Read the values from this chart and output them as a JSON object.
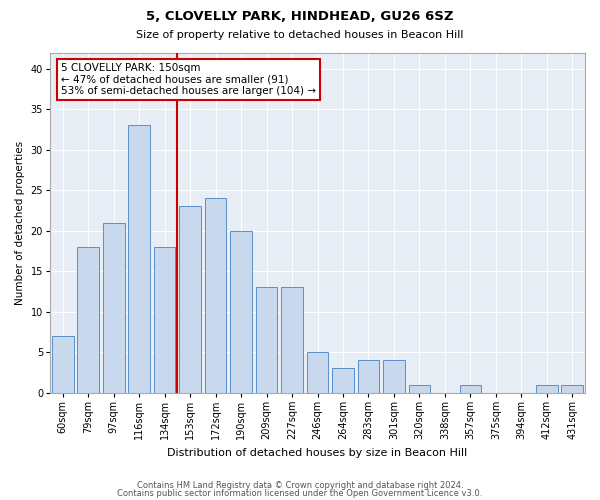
{
  "title1": "5, CLOVELLY PARK, HINDHEAD, GU26 6SZ",
  "title2": "Size of property relative to detached houses in Beacon Hill",
  "xlabel": "Distribution of detached houses by size in Beacon Hill",
  "ylabel": "Number of detached properties",
  "categories": [
    "60sqm",
    "79sqm",
    "97sqm",
    "116sqm",
    "134sqm",
    "153sqm",
    "172sqm",
    "190sqm",
    "209sqm",
    "227sqm",
    "246sqm",
    "264sqm",
    "283sqm",
    "301sqm",
    "320sqm",
    "338sqm",
    "357sqm",
    "375sqm",
    "394sqm",
    "412sqm",
    "431sqm"
  ],
  "values": [
    7,
    18,
    21,
    33,
    18,
    23,
    24,
    20,
    13,
    13,
    5,
    3,
    4,
    4,
    1,
    0,
    1,
    0,
    0,
    1,
    1
  ],
  "bar_color": "#c9d9ed",
  "bar_edge_color": "#5b8fc9",
  "bar_edge_width": 0.7,
  "vline_x_index": 5,
  "vline_color": "#cc0000",
  "annotation_text": "5 CLOVELLY PARK: 150sqm\n← 47% of detached houses are smaller (91)\n53% of semi-detached houses are larger (104) →",
  "annotation_box_color": "#ffffff",
  "annotation_box_edge": "#cc0000",
  "plot_background": "#e8eef5",
  "ylim": [
    0,
    42
  ],
  "yticks": [
    0,
    5,
    10,
    15,
    20,
    25,
    30,
    35,
    40
  ],
  "title1_fontsize": 9.5,
  "title2_fontsize": 8,
  "xlabel_fontsize": 8,
  "ylabel_fontsize": 7.5,
  "tick_fontsize": 7,
  "footer1": "Contains HM Land Registry data © Crown copyright and database right 2024.",
  "footer2": "Contains public sector information licensed under the Open Government Licence v3.0.",
  "footer_fontsize": 6
}
